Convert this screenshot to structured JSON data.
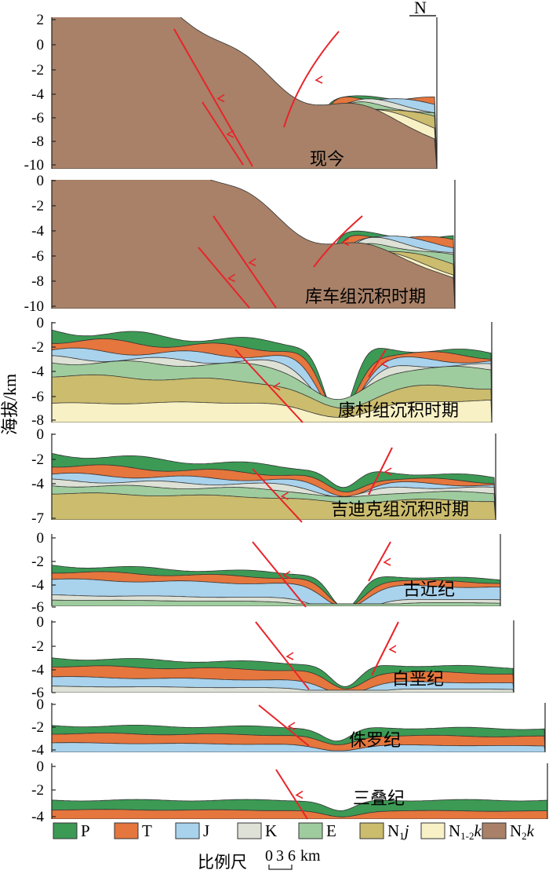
{
  "y_axis_label": "海拔/km",
  "north_label": "N",
  "stages": [
    {
      "label": "现今",
      "ticks": [
        "2",
        "0",
        "-2",
        "-4",
        "-6",
        "-8",
        "-10"
      ]
    },
    {
      "label": "库车组沉积时期",
      "ticks": [
        "0",
        "-2",
        "-4",
        "-6",
        "-8",
        "-10"
      ]
    },
    {
      "label": "康村组沉积时期",
      "ticks": [
        "0",
        "-2",
        "-4",
        "-6",
        "-8"
      ]
    },
    {
      "label": "吉迪克组沉积时期",
      "ticks": [
        "0",
        "-2",
        "-4",
        "-7"
      ]
    },
    {
      "label": "古近纪",
      "ticks": [
        "0",
        "-2",
        "-4",
        "-6"
      ]
    },
    {
      "label": "白垩纪",
      "ticks": [
        "0",
        "-2",
        "-4",
        "-6"
      ]
    },
    {
      "label": "侏罗纪",
      "ticks": [
        "0",
        "-2",
        "-4"
      ]
    },
    {
      "label": "三叠纪",
      "ticks": [
        "0",
        "-2",
        "-4"
      ]
    }
  ],
  "legend": [
    {
      "label": "P",
      "color": "#3c9a55"
    },
    {
      "label": "T",
      "color": "#e5763d"
    },
    {
      "label": "J",
      "color": "#a9d2ec"
    },
    {
      "label": "K",
      "color": "#dde1d6"
    },
    {
      "label": "E",
      "color": "#9fcc9e"
    },
    {
      "label": "N1j",
      "base": "N",
      "sub": "1",
      "italic": "j",
      "color": "#cbbc6e"
    },
    {
      "label": "N1-2k",
      "base": "N",
      "sub": "1-2",
      "italic": "k",
      "color": "#f8f1c5"
    },
    {
      "label": "N2k",
      "base": "N",
      "sub": "2",
      "italic": "k",
      "color": "#a88168"
    }
  ],
  "scale": {
    "label": "比例尺",
    "ticks": [
      "0",
      "3",
      "6"
    ],
    "unit": "km"
  },
  "colors": {
    "fault": "#e8242a",
    "frame": "#222222"
  }
}
